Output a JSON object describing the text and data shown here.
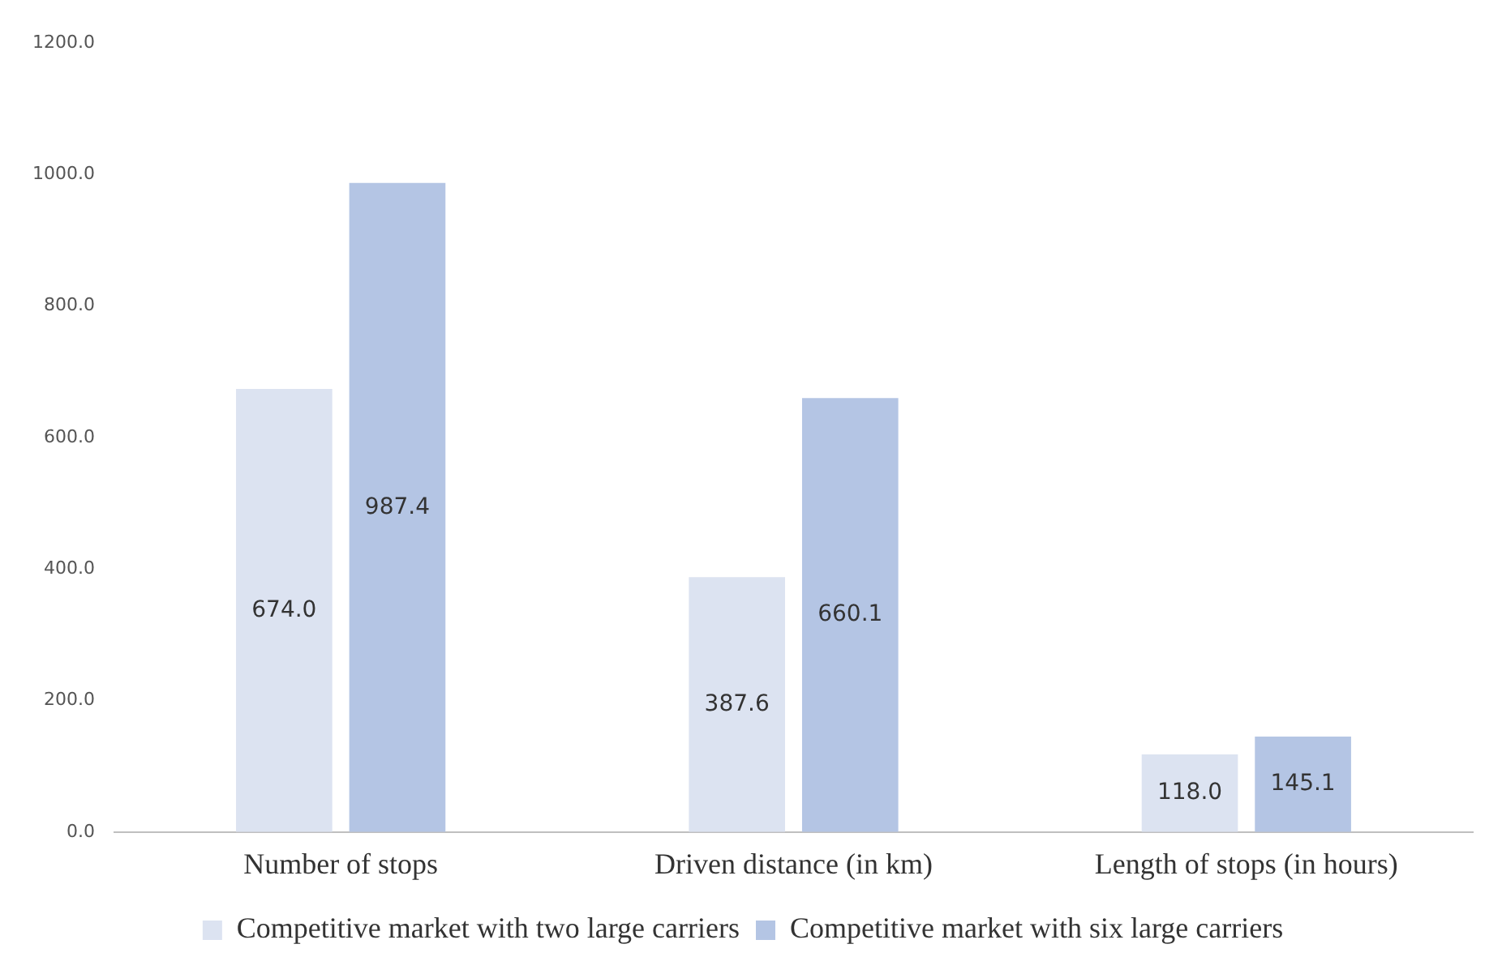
{
  "chart_data": {
    "type": "bar",
    "categories": [
      "Number of stops",
      "Driven distance (in km)",
      "Length of stops (in hours)"
    ],
    "series": [
      {
        "name": "Competitive market with two large carriers",
        "color": "#dce3f1",
        "values": [
          674.0,
          387.6,
          118.0
        ],
        "value_labels": [
          "674.0",
          "387.6",
          "118.0"
        ]
      },
      {
        "name": "Competitive market with six large carriers",
        "color": "#b4c5e4",
        "values": [
          987.4,
          660.1,
          145.1
        ],
        "value_labels": [
          "987.4",
          "660.1",
          "145.1"
        ]
      }
    ],
    "ylim": [
      0,
      1200
    ],
    "yticks": [
      {
        "value": 0,
        "label": "0.0"
      },
      {
        "value": 200,
        "label": "200.0"
      },
      {
        "value": 400,
        "label": "400.0"
      },
      {
        "value": 600,
        "label": "600.0"
      },
      {
        "value": 800,
        "label": "800.0"
      },
      {
        "value": 1000,
        "label": "1000.0"
      },
      {
        "value": 1200,
        "label": "1200.0"
      }
    ],
    "grid": false,
    "legend": "bottom"
  }
}
